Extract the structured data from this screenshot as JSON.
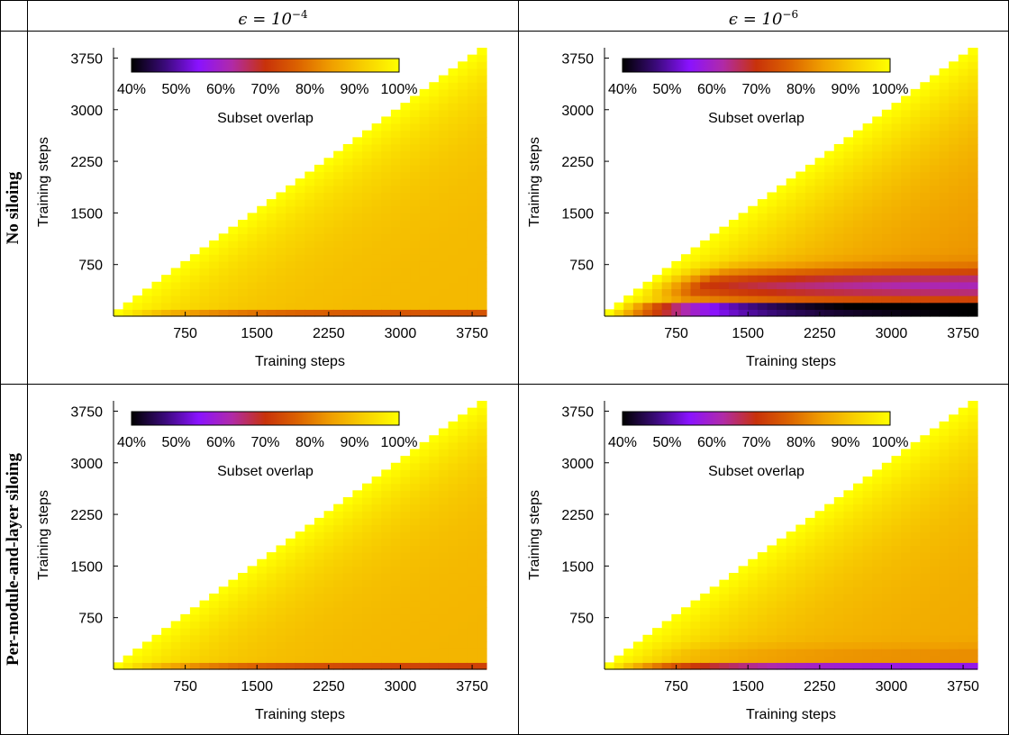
{
  "columns": [
    {
      "prefix": "ϵ = 10",
      "exp": "−4"
    },
    {
      "prefix": "ϵ = 10",
      "exp": "−6"
    }
  ],
  "rows": [
    "No siloing",
    "Per-module-and-layer siloing"
  ],
  "colors": {
    "colormap_stops": [
      "#000000",
      "#3a0a7a",
      "#8a12ff",
      "#b02aa8",
      "#c8320a",
      "#dc6400",
      "#f0a000",
      "#f8d200",
      "#ffff00"
    ]
  },
  "chart_data": [
    {
      "type": "heatmap",
      "panel": "No siloing, ϵ = 10^−4",
      "xlabel": "Training steps",
      "ylabel": "Training steps",
      "xticks": [
        "750",
        "1500",
        "2250",
        "3000",
        "3750"
      ],
      "yticks": [
        "750",
        "1500",
        "2250",
        "3000",
        "3750"
      ],
      "colorbar": {
        "label": "Subset overlap",
        "ticks": [
          "40%",
          "50%",
          "60%",
          "70%",
          "80%",
          "90%",
          "100%"
        ],
        "range": [
          40,
          100
        ]
      },
      "xlim": [
        0,
        3900
      ],
      "ylim": [
        0,
        3900
      ],
      "model": {
        "base": 88.6,
        "decay": 66,
        "tau": 1700,
        "dip_amp": 0,
        "dip_center": 0,
        "dip_width": 1,
        "floor_amp": 14,
        "floor_tau": 900,
        "floor_band": 120
      }
    },
    {
      "type": "heatmap",
      "panel": "No siloing, ϵ = 10^−6",
      "xlabel": "Training steps",
      "ylabel": "Training steps",
      "xticks": [
        "750",
        "1500",
        "2250",
        "3000",
        "3750"
      ],
      "yticks": [
        "750",
        "1500",
        "2250",
        "3000",
        "3750"
      ],
      "colorbar": {
        "label": "Subset overlap",
        "ticks": [
          "40%",
          "50%",
          "60%",
          "70%",
          "80%",
          "90%",
          "100%"
        ],
        "range": [
          40,
          100
        ]
      },
      "xlim": [
        0,
        3900
      ],
      "ylim": [
        0,
        3900
      ],
      "model": {
        "base": 82,
        "decay": 40,
        "tau": 2800,
        "dip_amp": 22,
        "dip_center": 450,
        "dip_width": 230,
        "floor_amp": 42,
        "floor_tau": 700,
        "floor_band": 180
      }
    },
    {
      "type": "heatmap",
      "panel": "Per-module-and-layer siloing, ϵ = 10^−4",
      "xlabel": "Training steps",
      "ylabel": "Training steps",
      "xticks": [
        "750",
        "1500",
        "2250",
        "3000",
        "3750"
      ],
      "yticks": [
        "750",
        "1500",
        "2250",
        "3000",
        "3750"
      ],
      "colorbar": {
        "label": "Subset overlap",
        "ticks": [
          "40%",
          "50%",
          "60%",
          "70%",
          "80%",
          "90%",
          "100%"
        ],
        "range": [
          40,
          100
        ]
      },
      "xlim": [
        0,
        3900
      ],
      "ylim": [
        0,
        3900
      ],
      "model": {
        "base": 88,
        "decay": 62,
        "tau": 1700,
        "dip_amp": 0,
        "dip_center": 0,
        "dip_width": 1,
        "floor_amp": 16,
        "floor_tau": 900,
        "floor_band": 130
      }
    },
    {
      "type": "heatmap",
      "panel": "Per-module-and-layer siloing, ϵ = 10^−6",
      "xlabel": "Training steps",
      "ylabel": "Training steps",
      "xticks": [
        "750",
        "1500",
        "2250",
        "3000",
        "3750"
      ],
      "yticks": [
        "750",
        "1500",
        "2250",
        "3000",
        "3750"
      ],
      "colorbar": {
        "label": "Subset overlap",
        "ticks": [
          "40%",
          "50%",
          "60%",
          "70%",
          "80%",
          "90%",
          "100%"
        ],
        "range": [
          40,
          100
        ]
      },
      "xlim": [
        0,
        3900
      ],
      "ylim": [
        0,
        3900
      ],
      "model": {
        "base": 86,
        "decay": 48,
        "tau": 2200,
        "dip_amp": 4,
        "dip_center": 200,
        "dip_width": 160,
        "floor_amp": 28,
        "floor_tau": 800,
        "floor_band": 150
      }
    }
  ]
}
